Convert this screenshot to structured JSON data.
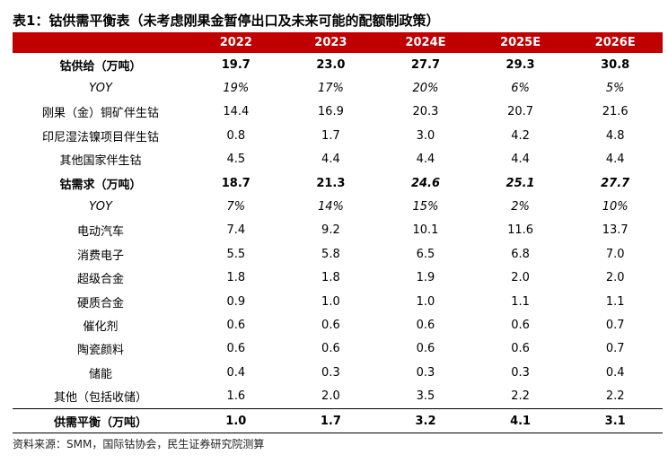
{
  "title": "表1：钴供需平衡表（未考虑刚果金暂停出口及未来可能的配额制政策）",
  "table": {
    "header": [
      "2022",
      "2023",
      "2024E",
      "2025E",
      "2026E"
    ],
    "rows": [
      [
        "钴供给（万吨）",
        "19.7",
        "23.0",
        "27.7",
        "29.3",
        "30.8"
      ],
      [
        "YOY",
        "19%",
        "17%",
        "20%",
        "6%",
        "5%"
      ],
      [
        "刚果（金）铜矿伴生钴",
        "14.4",
        "16.9",
        "20.3",
        "20.7",
        "21.6"
      ],
      [
        "印尼湿法镍项目伴生钴",
        "0.8",
        "1.7",
        "3.0",
        "4.2",
        "4.8"
      ],
      [
        "其他国家伴生钴",
        "4.5",
        "4.4",
        "4.4",
        "4.4",
        "4.4"
      ],
      [
        "钴需求（万吨）",
        "18.7",
        "21.3",
        "24.6",
        "25.1",
        "27.7"
      ],
      [
        "YOY",
        "7%",
        "14%",
        "15%",
        "2%",
        "10%"
      ],
      [
        "电动汽车",
        "7.4",
        "9.2",
        "10.1",
        "11.6",
        "13.7"
      ],
      [
        "消费电子",
        "5.5",
        "5.8",
        "6.5",
        "6.8",
        "7.0"
      ],
      [
        "超级合金",
        "1.8",
        "1.8",
        "1.9",
        "2.0",
        "2.0"
      ],
      [
        "硬质合金",
        "0.9",
        "1.0",
        "1.0",
        "1.1",
        "1.1"
      ],
      [
        "催化剂",
        "0.6",
        "0.6",
        "0.6",
        "0.6",
        "0.7"
      ],
      [
        "陶瓷颜料",
        "0.6",
        "0.6",
        "0.6",
        "0.6",
        "0.7"
      ],
      [
        "储能",
        "0.4",
        "0.3",
        "0.3",
        "0.3",
        "0.4"
      ],
      [
        "其他（包括收储）",
        "1.6",
        "2.0",
        "3.5",
        "2.2",
        "2.2"
      ],
      [
        "供需平衡（万吨）",
        "1.0",
        "1.7",
        "3.2",
        "4.1",
        "3.1"
      ]
    ]
  },
  "source": "资料来源：SMM，国际钴协会，民生证券研究院测算"
}
